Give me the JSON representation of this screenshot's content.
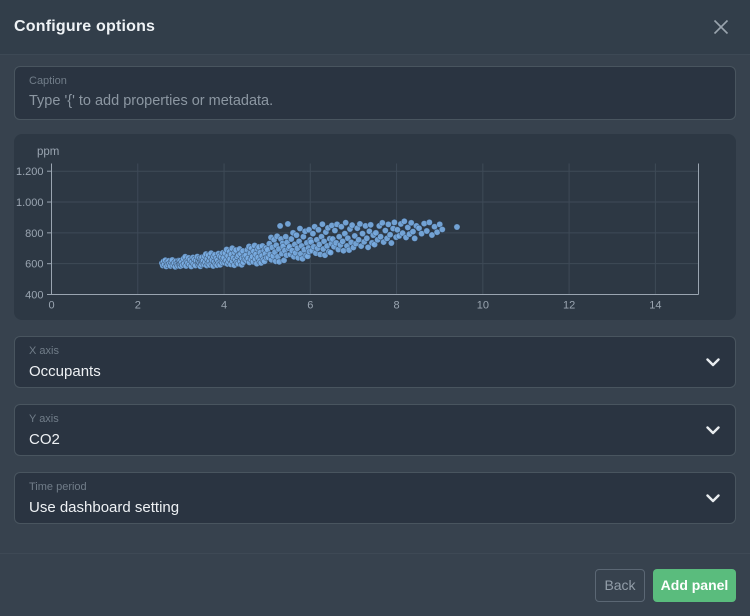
{
  "header": {
    "title": "Configure options",
    "close_icon": "x-close"
  },
  "caption_field": {
    "label": "Caption",
    "value": "",
    "placeholder": "Type '{' to add properties or metadata."
  },
  "chart_data": {
    "type": "scatter",
    "title": "",
    "xlabel": "",
    "ylabel": "ppm",
    "x_axis_field": "Occupants",
    "y_axis_field": "CO2",
    "xlim": [
      0,
      15
    ],
    "ylim": [
      400,
      1250
    ],
    "x_ticks": [
      0,
      2,
      4,
      6,
      8,
      10,
      12,
      14
    ],
    "y_ticks": [
      400,
      600,
      800,
      1000,
      1200
    ],
    "y_tick_labels": [
      "400",
      "600",
      "800",
      "1.000",
      "1.200"
    ],
    "grid": true,
    "legend": false,
    "point_color": "#7aaee4",
    "axis_color": "#9aa5b1",
    "grid_color": "#3e4a57",
    "points": [
      [
        2.56,
        603
      ],
      [
        2.58,
        588
      ],
      [
        2.6,
        615
      ],
      [
        2.62,
        596
      ],
      [
        2.64,
        622
      ],
      [
        2.66,
        582
      ],
      [
        2.68,
        608
      ],
      [
        2.7,
        593
      ],
      [
        2.72,
        618
      ],
      [
        2.74,
        600
      ],
      [
        2.76,
        585
      ],
      [
        2.78,
        612
      ],
      [
        2.8,
        624
      ],
      [
        2.82,
        590
      ],
      [
        2.85,
        605
      ],
      [
        2.87,
        580
      ],
      [
        2.89,
        616
      ],
      [
        2.91,
        598
      ],
      [
        2.93,
        586
      ],
      [
        2.95,
        621
      ],
      [
        2.96,
        609
      ],
      [
        2.97,
        594
      ],
      [
        2.98,
        619
      ],
      [
        2.99,
        584
      ],
      [
        3.0,
        601
      ],
      [
        3.02,
        610
      ],
      [
        3.04,
        590
      ],
      [
        3.06,
        632
      ],
      [
        3.08,
        600
      ],
      [
        3.1,
        645
      ],
      [
        3.12,
        585
      ],
      [
        3.14,
        618
      ],
      [
        3.16,
        605
      ],
      [
        3.18,
        638
      ],
      [
        3.2,
        595
      ],
      [
        3.22,
        625
      ],
      [
        3.24,
        582
      ],
      [
        3.26,
        612
      ],
      [
        3.28,
        640
      ],
      [
        3.3,
        598
      ],
      [
        3.32,
        628
      ],
      [
        3.34,
        588
      ],
      [
        3.36,
        620
      ],
      [
        3.38,
        646
      ],
      [
        3.4,
        602
      ],
      [
        3.41,
        615
      ],
      [
        3.42,
        592
      ],
      [
        3.43,
        635
      ],
      [
        3.44,
        608
      ],
      [
        3.45,
        583
      ],
      [
        3.46,
        622
      ],
      [
        3.47,
        630
      ],
      [
        3.48,
        596
      ],
      [
        3.49,
        642
      ],
      [
        3.5,
        613
      ],
      [
        3.52,
        620
      ],
      [
        3.54,
        595
      ],
      [
        3.55,
        648
      ],
      [
        3.57,
        610
      ],
      [
        3.58,
        662
      ],
      [
        3.6,
        588
      ],
      [
        3.61,
        630
      ],
      [
        3.63,
        603
      ],
      [
        3.64,
        655
      ],
      [
        3.66,
        615
      ],
      [
        3.67,
        592
      ],
      [
        3.69,
        640
      ],
      [
        3.7,
        668
      ],
      [
        3.72,
        600
      ],
      [
        3.73,
        625
      ],
      [
        3.75,
        585
      ],
      [
        3.76,
        645
      ],
      [
        3.78,
        612
      ],
      [
        3.79,
        658
      ],
      [
        3.81,
        598
      ],
      [
        3.82,
        635
      ],
      [
        3.84,
        590
      ],
      [
        3.85,
        622
      ],
      [
        3.87,
        665
      ],
      [
        3.88,
        605
      ],
      [
        3.9,
        650
      ],
      [
        3.91,
        593
      ],
      [
        3.93,
        618
      ],
      [
        3.94,
        642
      ],
      [
        3.96,
        608
      ],
      [
        3.97,
        670
      ],
      [
        3.98,
        628
      ],
      [
        4.0,
        640
      ],
      [
        4.02,
        605
      ],
      [
        4.03,
        668
      ],
      [
        4.05,
        620
      ],
      [
        4.06,
        692
      ],
      [
        4.08,
        598
      ],
      [
        4.09,
        650
      ],
      [
        4.11,
        612
      ],
      [
        4.13,
        678
      ],
      [
        4.14,
        630
      ],
      [
        4.16,
        595
      ],
      [
        4.17,
        660
      ],
      [
        4.19,
        700
      ],
      [
        4.2,
        615
      ],
      [
        4.22,
        638
      ],
      [
        4.24,
        590
      ],
      [
        4.25,
        672
      ],
      [
        4.27,
        625
      ],
      [
        4.28,
        688
      ],
      [
        4.3,
        608
      ],
      [
        4.31,
        645
      ],
      [
        4.33,
        600
      ],
      [
        4.34,
        655
      ],
      [
        4.36,
        695
      ],
      [
        4.38,
        618
      ],
      [
        4.39,
        665
      ],
      [
        4.41,
        593
      ],
      [
        4.42,
        635
      ],
      [
        4.44,
        682
      ],
      [
        4.45,
        610
      ],
      [
        4.47,
        648
      ],
      [
        4.49,
        628
      ],
      [
        4.51,
        655
      ],
      [
        4.53,
        620
      ],
      [
        4.54,
        690
      ],
      [
        4.56,
        635
      ],
      [
        4.58,
        712
      ],
      [
        4.59,
        608
      ],
      [
        4.61,
        668
      ],
      [
        4.63,
        628
      ],
      [
        4.64,
        700
      ],
      [
        4.66,
        645
      ],
      [
        4.68,
        612
      ],
      [
        4.69,
        680
      ],
      [
        4.71,
        718
      ],
      [
        4.73,
        630
      ],
      [
        4.74,
        660
      ],
      [
        4.76,
        600
      ],
      [
        4.78,
        695
      ],
      [
        4.79,
        640
      ],
      [
        4.81,
        708
      ],
      [
        4.83,
        618
      ],
      [
        4.84,
        672
      ],
      [
        4.86,
        605
      ],
      [
        4.88,
        650
      ],
      [
        4.89,
        715
      ],
      [
        4.91,
        625
      ],
      [
        4.93,
        685
      ],
      [
        4.94,
        615
      ],
      [
        4.96,
        665
      ],
      [
        4.98,
        702
      ],
      [
        4.99,
        638
      ],
      [
        5.01,
        690
      ],
      [
        5.03,
        640
      ],
      [
        5.05,
        730
      ],
      [
        5.07,
        660
      ],
      [
        5.09,
        770
      ],
      [
        5.1,
        625
      ],
      [
        5.12,
        705
      ],
      [
        5.14,
        650
      ],
      [
        5.16,
        755
      ],
      [
        5.18,
        675
      ],
      [
        5.2,
        615
      ],
      [
        5.21,
        720
      ],
      [
        5.23,
        778
      ],
      [
        5.25,
        645
      ],
      [
        5.27,
        695
      ],
      [
        5.28,
        612
      ],
      [
        5.3,
        845
      ],
      [
        5.32,
        760
      ],
      [
        5.34,
        665
      ],
      [
        5.36,
        732
      ],
      [
        5.37,
        712
      ],
      [
        5.39,
        622
      ],
      [
        5.41,
        685
      ],
      [
        5.43,
        775
      ],
      [
        5.45,
        655
      ],
      [
        5.46,
        738
      ],
      [
        5.48,
        858
      ],
      [
        5.5,
        700
      ],
      [
        5.52,
        710
      ],
      [
        5.54,
        660
      ],
      [
        5.56,
        760
      ],
      [
        5.58,
        685
      ],
      [
        5.6,
        800
      ],
      [
        5.62,
        645
      ],
      [
        5.64,
        725
      ],
      [
        5.66,
        670
      ],
      [
        5.68,
        785
      ],
      [
        5.7,
        700
      ],
      [
        5.72,
        638
      ],
      [
        5.74,
        745
      ],
      [
        5.76,
        828
      ],
      [
        5.78,
        665
      ],
      [
        5.8,
        715
      ],
      [
        5.82,
        632
      ],
      [
        5.84,
        775
      ],
      [
        5.86,
        690
      ],
      [
        5.88,
        810
      ],
      [
        5.9,
        655
      ],
      [
        5.92,
        735
      ],
      [
        5.94,
        648
      ],
      [
        5.96,
        702
      ],
      [
        5.97,
        820
      ],
      [
        5.98,
        678
      ],
      [
        6.0,
        755
      ],
      [
        6.02,
        740
      ],
      [
        6.04,
        685
      ],
      [
        6.06,
        795
      ],
      [
        6.08,
        710
      ],
      [
        6.1,
        840
      ],
      [
        6.13,
        668
      ],
      [
        6.15,
        755
      ],
      [
        6.17,
        700
      ],
      [
        6.19,
        820
      ],
      [
        6.21,
        725
      ],
      [
        6.23,
        660
      ],
      [
        6.26,
        775
      ],
      [
        6.28,
        856
      ],
      [
        6.3,
        695
      ],
      [
        6.32,
        745
      ],
      [
        6.34,
        655
      ],
      [
        6.36,
        805
      ],
      [
        6.39,
        715
      ],
      [
        6.41,
        832
      ],
      [
        6.43,
        678
      ],
      [
        6.45,
        762
      ],
      [
        6.47,
        672
      ],
      [
        6.49,
        730
      ],
      [
        6.5,
        848
      ],
      [
        6.52,
        760
      ],
      [
        6.55,
        710
      ],
      [
        6.57,
        815
      ],
      [
        6.6,
        735
      ],
      [
        6.62,
        855
      ],
      [
        6.65,
        692
      ],
      [
        6.67,
        775
      ],
      [
        6.7,
        722
      ],
      [
        6.72,
        840
      ],
      [
        6.75,
        745
      ],
      [
        6.77,
        684
      ],
      [
        6.8,
        795
      ],
      [
        6.82,
        866
      ],
      [
        6.85,
        715
      ],
      [
        6.87,
        765
      ],
      [
        6.9,
        688
      ],
      [
        6.92,
        825
      ],
      [
        6.95,
        738
      ],
      [
        6.97,
        850
      ],
      [
        7.0,
        705
      ],
      [
        7.03,
        780
      ],
      [
        7.06,
        730
      ],
      [
        7.09,
        830
      ],
      [
        7.12,
        755
      ],
      [
        7.15,
        858
      ],
      [
        7.18,
        714
      ],
      [
        7.21,
        795
      ],
      [
        7.25,
        742
      ],
      [
        7.28,
        845
      ],
      [
        7.31,
        765
      ],
      [
        7.34,
        706
      ],
      [
        7.37,
        810
      ],
      [
        7.4,
        852
      ],
      [
        7.43,
        735
      ],
      [
        7.46,
        785
      ],
      [
        7.49,
        724
      ],
      [
        7.52,
        800
      ],
      [
        7.56,
        755
      ],
      [
        7.6,
        845
      ],
      [
        7.63,
        775
      ],
      [
        7.67,
        865
      ],
      [
        7.7,
        740
      ],
      [
        7.74,
        815
      ],
      [
        7.78,
        764
      ],
      [
        7.81,
        855
      ],
      [
        7.85,
        788
      ],
      [
        7.88,
        734
      ],
      [
        7.92,
        828
      ],
      [
        7.95,
        868
      ],
      [
        7.99,
        772
      ],
      [
        8.02,
        820
      ],
      [
        8.06,
        780
      ],
      [
        8.1,
        858
      ],
      [
        8.14,
        798
      ],
      [
        8.18,
        875
      ],
      [
        8.22,
        770
      ],
      [
        8.26,
        835
      ],
      [
        8.3,
        792
      ],
      [
        8.34,
        865
      ],
      [
        8.38,
        808
      ],
      [
        8.42,
        764
      ],
      [
        8.46,
        845
      ],
      [
        8.52,
        830
      ],
      [
        8.58,
        795
      ],
      [
        8.64,
        860
      ],
      [
        8.7,
        812
      ],
      [
        8.76,
        868
      ],
      [
        8.82,
        786
      ],
      [
        8.88,
        840
      ],
      [
        8.94,
        804
      ],
      [
        9.0,
        855
      ],
      [
        9.06,
        822
      ],
      [
        9.4,
        838
      ]
    ]
  },
  "selects": [
    {
      "label": "X axis",
      "value": "Occupants"
    },
    {
      "label": "Y axis",
      "value": "CO2"
    },
    {
      "label": "Time period",
      "value": "Use dashboard setting"
    }
  ],
  "footer": {
    "back_label": "Back",
    "add_label": "Add panel",
    "add_color": "#5abc7d"
  }
}
